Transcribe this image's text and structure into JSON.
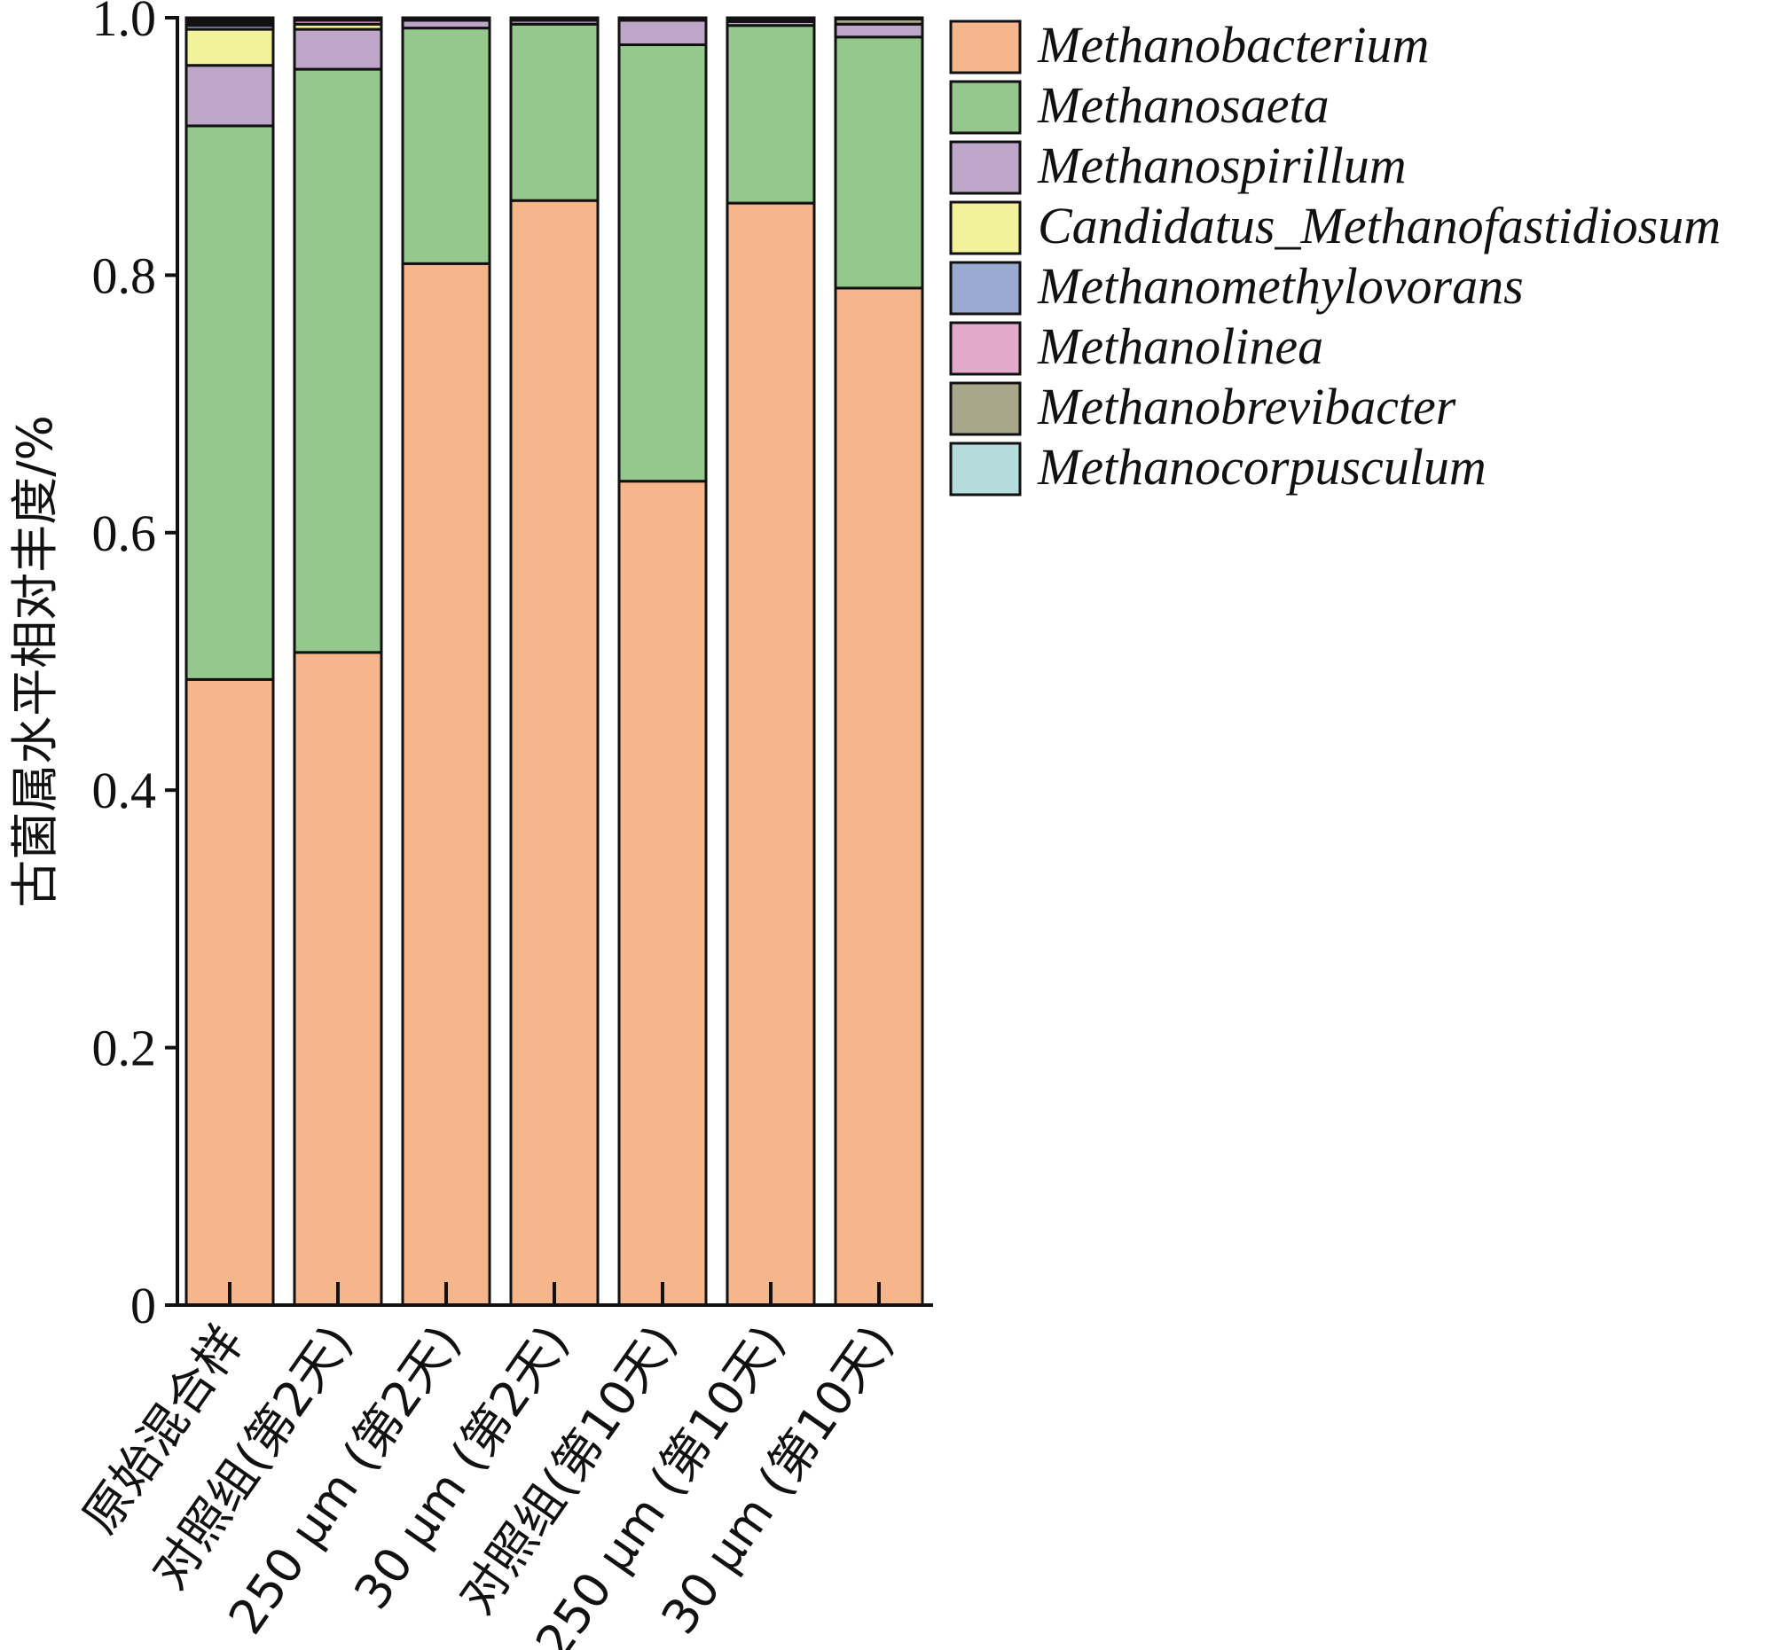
{
  "chart_data": {
    "type": "bar",
    "stacked": true,
    "title": "",
    "xlabel": "",
    "ylabel": "古菌属水平相对丰度/%",
    "ylim": [
      0,
      1.0
    ],
    "yticks": [
      "0",
      "0.2",
      "0.4",
      "0.6",
      "0.8",
      "1.0"
    ],
    "categories": [
      "原始混合样",
      "对照组(第2天)",
      "250 μm (第2天)",
      "30 μm (第2天)",
      "对照组(第10天)",
      "250 μm (第10天)",
      "30 μm (第10天)"
    ],
    "series": [
      {
        "name": "Methanobacterium",
        "color": "#F5B68C",
        "values": [
          0.486,
          0.507,
          0.809,
          0.858,
          0.64,
          0.856,
          0.79
        ]
      },
      {
        "name": "Methanosaeta",
        "color": "#95C88C",
        "values": [
          0.43,
          0.453,
          0.183,
          0.137,
          0.339,
          0.138,
          0.195
        ]
      },
      {
        "name": "Methanospirillum",
        "color": "#BDA6C7",
        "values": [
          0.047,
          0.031,
          0.006,
          0.003,
          0.019,
          0.003,
          0.01
        ]
      },
      {
        "name": "Candidatus_Methanofastidiosum",
        "color": "#F2F29A",
        "values": [
          0.028,
          0.004,
          0.0,
          0.0,
          0.0,
          0.0,
          0.0
        ]
      },
      {
        "name": "Methanomethylovorans",
        "color": "#9AAAD2",
        "values": [
          0.003,
          0.0,
          0.0,
          0.0,
          0.0,
          0.0,
          0.0
        ]
      },
      {
        "name": "Methanolinea",
        "color": "#E2A9CB",
        "values": [
          0.002,
          0.003,
          0.0,
          0.0,
          0.0,
          0.001,
          0.0
        ]
      },
      {
        "name": "Methanobrevibacter",
        "color": "#A9A78A",
        "values": [
          0.002,
          0.001,
          0.001,
          0.001,
          0.001,
          0.001,
          0.004
        ]
      },
      {
        "name": "Methanocorpusculum",
        "color": "#B4DCDA",
        "values": [
          0.002,
          0.001,
          0.001,
          0.001,
          0.001,
          0.001,
          0.001
        ]
      }
    ],
    "legend_position": "right",
    "grid": false
  }
}
